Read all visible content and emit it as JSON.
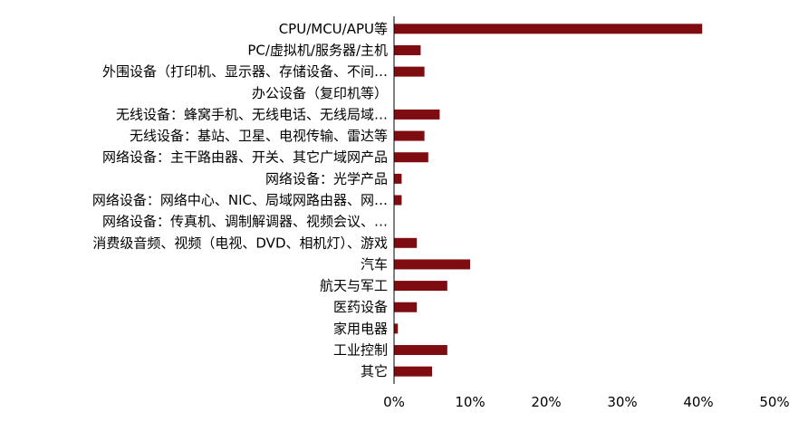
{
  "chart_data": {
    "type": "bar",
    "orientation": "horizontal",
    "title": "",
    "xlabel": "",
    "ylabel": "",
    "xlim": [
      0,
      0.5
    ],
    "x_ticks": [
      "0%",
      "10%",
      "20%",
      "30%",
      "40%",
      "50%"
    ],
    "grid": false,
    "legend": "none",
    "bar_color": "#7f0c10",
    "categories": [
      "CPU/MCU/APU等",
      "PC/虚拟机/服务器/主机",
      "外围设备（打印机、显示器、存储设备、不间…",
      "办公设备（复印机等）",
      "无线设备：蜂窝手机、无线电话、无线局域…",
      "无线设备：基站、卫星、电视传输、雷达等",
      "网络设备：主干路由器、开关、其它广域网产品",
      "网络设备：光学产品",
      "网络设备：网络中心、NIC、局域网路由器、网…",
      "网络设备：传真机、调制解调器、视频会议、…",
      "消费级音频、视频（电视、DVD、相机灯）、游戏",
      "汽车",
      "航天与军工",
      "医药设备",
      "家用电器",
      "工业控制",
      "其它"
    ],
    "values": [
      0.405,
      0.035,
      0.04,
      0.0,
      0.06,
      0.04,
      0.045,
      0.01,
      0.01,
      0.0,
      0.03,
      0.1,
      0.07,
      0.03,
      0.005,
      0.07,
      0.05
    ]
  }
}
